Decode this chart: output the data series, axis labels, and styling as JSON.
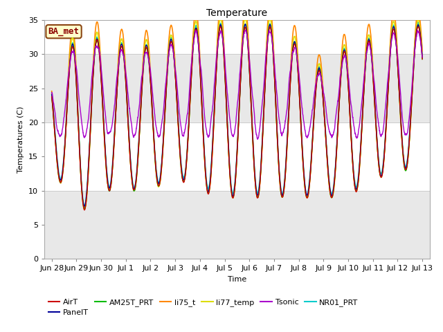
{
  "title": "Temperature",
  "ylabel": "Temperatures (C)",
  "xlabel": "Time",
  "ylim": [
    0,
    35
  ],
  "annotation_text": "BA_met",
  "annotation_box_color": "#ffffcc",
  "annotation_border_color": "#8B4513",
  "annotation_text_color": "#8B0000",
  "series": {
    "AirT": {
      "color": "#cc0000",
      "lw": 1.0
    },
    "PanelT": {
      "color": "#000099",
      "lw": 1.0
    },
    "AM25T_PRT": {
      "color": "#00bb00",
      "lw": 1.0
    },
    "li75_t": {
      "color": "#ff8800",
      "lw": 1.2
    },
    "li77_temp": {
      "color": "#dddd00",
      "lw": 1.2
    },
    "Tsonic": {
      "color": "#aa00cc",
      "lw": 1.0
    },
    "NR01_PRT": {
      "color": "#00cccc",
      "lw": 1.2
    }
  },
  "xtick_labels": [
    "Jun 28",
    "Jun 29",
    "Jun 30",
    "Jul 1",
    "Jul 2",
    "Jul 3",
    "Jul 4",
    "Jul 5",
    "Jul 6",
    "Jul 7",
    "Jul 8",
    "Jul 9",
    "Jul 10",
    "Jul 11",
    "Jul 12",
    "Jul 13"
  ],
  "ytick_positions": [
    0,
    5,
    10,
    15,
    20,
    25,
    30,
    35
  ],
  "n_points": 2880,
  "days": 15
}
